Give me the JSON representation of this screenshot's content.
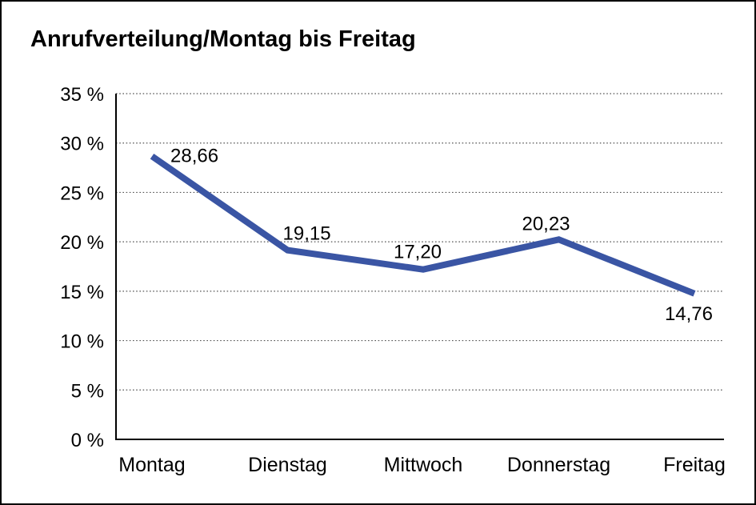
{
  "title": "Anrufverteilung/Montag bis Freitag",
  "chart_data": {
    "type": "line",
    "title": "Anrufverteilung/Montag bis Freitag",
    "categories": [
      "Montag",
      "Dienstag",
      "Mittwoch",
      "Donnerstag",
      "Freitag"
    ],
    "series": [
      {
        "name": "Anrufverteilung",
        "values": [
          28.66,
          19.15,
          17.2,
          20.23,
          14.76
        ],
        "value_labels": [
          "28,66",
          "19,15",
          "17,20",
          "20,23",
          "14,76"
        ]
      }
    ],
    "xlabel": "",
    "ylabel": "",
    "ylim": [
      0,
      35
    ],
    "y_tick_step": 5,
    "y_tick_labels": [
      "0 %",
      "5 %",
      "10 %",
      "15 %",
      "20 %",
      "25 %",
      "30 %",
      "35 %"
    ],
    "grid": "horizontal-dotted",
    "legend": "none",
    "colors": {
      "line": "#3A55A4",
      "axis": "#000000",
      "gridline": "#555555",
      "text": "#000000",
      "background": "#FFFFFF"
    }
  }
}
